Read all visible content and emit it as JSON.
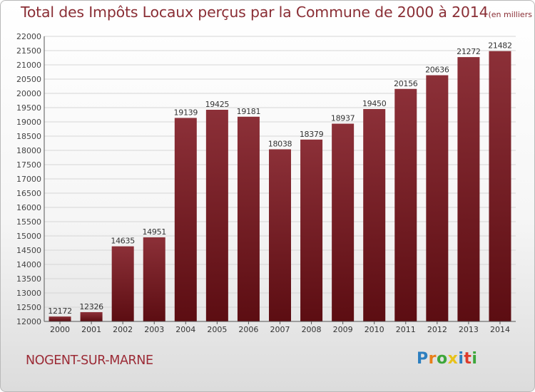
{
  "title": {
    "main": "Total des Impôts Locaux perçus par la Commune de 2000 à 2014",
    "unit": "(en milliers d'€)"
  },
  "commune": "NOGENT-SUR-MARNE",
  "logo": {
    "text": "Proxiti",
    "letter_colors": [
      "#2c7fc0",
      "#e87f1a",
      "#3da63a",
      "#e8c21a",
      "#2c7fc0",
      "#dd3a2a",
      "#3da63a"
    ]
  },
  "colors": {
    "bar_top": "#8c3038",
    "bar_bottom": "#5c0d12",
    "grid": "#d6d6d6",
    "axis": "#555555",
    "title": "#8a2e35"
  },
  "chart_data": {
    "type": "bar",
    "title": "Total des Impôts Locaux perçus par la Commune de 2000 à 2014",
    "xlabel": "",
    "ylabel": "",
    "categories": [
      "2000",
      "2001",
      "2002",
      "2003",
      "2004",
      "2005",
      "2006",
      "2007",
      "2008",
      "2009",
      "2010",
      "2011",
      "2012",
      "2013",
      "2014"
    ],
    "values": [
      12172,
      12326,
      14635,
      14951,
      19139,
      19425,
      19181,
      18038,
      18379,
      18937,
      19450,
      20156,
      20636,
      21272,
      21482
    ],
    "ylim": [
      12000,
      22000
    ],
    "ytick_step": 500,
    "grid": true
  }
}
